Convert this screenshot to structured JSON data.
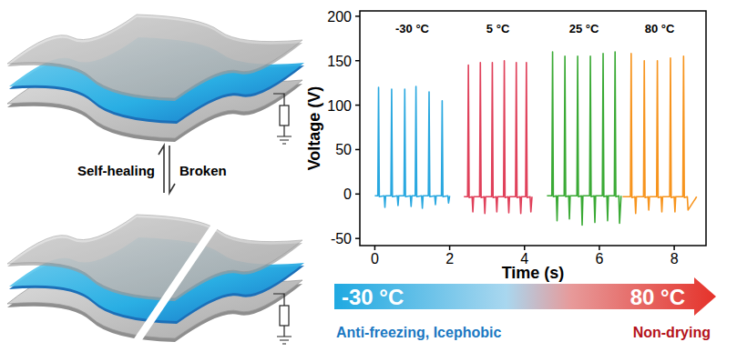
{
  "chart_data": {
    "type": "line",
    "x_label": "Time (s)",
    "y_label": "Voltage (V)",
    "xlim": [
      -0.4,
      8.85
    ],
    "ylim": [
      -58,
      206
    ],
    "xticks": [
      0,
      2,
      4,
      6,
      8
    ],
    "yticks": [
      -50,
      0,
      50,
      100,
      150,
      200
    ],
    "grid": false,
    "series": [
      {
        "name": "-30 °C",
        "color": "#29a8e0",
        "x": [
          0.0,
          0.08,
          0.1,
          0.12,
          0.25,
          0.27,
          0.29,
          0.43,
          0.45,
          0.47,
          0.6,
          0.62,
          0.64,
          0.78,
          0.8,
          0.82,
          0.95,
          0.97,
          0.99,
          1.08,
          1.1,
          1.12,
          1.25,
          1.27,
          1.29,
          1.43,
          1.45,
          1.47,
          1.6,
          1.62,
          1.64,
          1.78,
          1.8,
          1.82,
          1.95,
          1.97,
          2.0
        ],
        "values": [
          -2,
          -2,
          120,
          -3,
          -2,
          -15,
          -2,
          -2,
          118,
          -3,
          -2,
          -13,
          -2,
          -2,
          118,
          -3,
          -2,
          -14,
          -2,
          -2,
          121,
          -3,
          -2,
          -16,
          -2,
          -2,
          115,
          -3,
          -2,
          -12,
          -2,
          -2,
          105,
          -3,
          -2,
          -10,
          -2
        ]
      },
      {
        "name": "5 °C",
        "color": "#e0405a",
        "x": [
          2.38,
          2.48,
          2.5,
          2.52,
          2.6,
          2.62,
          2.64,
          2.8,
          2.82,
          2.84,
          2.92,
          2.94,
          2.96,
          3.12,
          3.14,
          3.16,
          3.24,
          3.26,
          3.28,
          3.44,
          3.46,
          3.48,
          3.56,
          3.58,
          3.6,
          3.76,
          3.78,
          3.8,
          3.88,
          3.9,
          3.92,
          4.03,
          4.05,
          4.07,
          4.15,
          4.17,
          4.2
        ],
        "values": [
          -3,
          -3,
          145,
          -4,
          -3,
          -20,
          -3,
          -3,
          148,
          -4,
          -3,
          -22,
          -3,
          -3,
          148,
          -4,
          -3,
          -20,
          -3,
          -3,
          150,
          -4,
          -3,
          -21,
          -3,
          -3,
          148,
          -4,
          -3,
          -22,
          -3,
          -3,
          148,
          -4,
          -3,
          -20,
          -3
        ]
      },
      {
        "name": "25 °C",
        "color": "#3aaa35",
        "x": [
          4.6,
          4.73,
          4.75,
          4.77,
          4.85,
          4.87,
          4.89,
          5.06,
          5.08,
          5.1,
          5.18,
          5.2,
          5.22,
          5.4,
          5.42,
          5.44,
          5.52,
          5.54,
          5.56,
          5.74,
          5.76,
          5.78,
          5.86,
          5.88,
          5.9,
          6.08,
          6.1,
          6.12,
          6.2,
          6.22,
          6.24,
          6.4,
          6.42,
          6.44,
          6.52,
          6.54,
          6.58
        ],
        "values": [
          -2,
          -2,
          160,
          -3,
          -2,
          -30,
          -2,
          -2,
          155,
          -3,
          -2,
          -28,
          -2,
          -2,
          155,
          -3,
          -2,
          -35,
          -2,
          -2,
          155,
          -3,
          -2,
          -32,
          -2,
          -2,
          158,
          -3,
          -2,
          -30,
          -2,
          -2,
          160,
          -3,
          -2,
          -33,
          -2
        ]
      },
      {
        "name": "80 °C",
        "color": "#f7941d",
        "x": [
          6.62,
          6.83,
          6.85,
          6.87,
          6.95,
          6.97,
          6.99,
          7.18,
          7.2,
          7.22,
          7.3,
          7.32,
          7.34,
          7.53,
          7.55,
          7.57,
          7.65,
          7.67,
          7.69,
          7.88,
          7.9,
          7.92,
          8.0,
          8.02,
          8.04,
          8.23,
          8.25,
          8.27,
          8.35,
          8.37,
          8.6
        ],
        "values": [
          -3,
          -3,
          158,
          -4,
          -3,
          -22,
          -3,
          -3,
          150,
          -4,
          -3,
          -18,
          -3,
          -3,
          150,
          -4,
          -3,
          -20,
          -3,
          -3,
          153,
          -4,
          -3,
          -20,
          -3,
          -3,
          155,
          -4,
          -3,
          -18,
          -3
        ]
      }
    ]
  },
  "schematic": {
    "forward_label": "Self-healing",
    "reverse_label": "Broken"
  },
  "temperature_bar": {
    "start": "-30 °C",
    "end": "80 °C",
    "left_caption": "Anti-freezing, Icephobic",
    "right_caption": "Non-drying"
  }
}
